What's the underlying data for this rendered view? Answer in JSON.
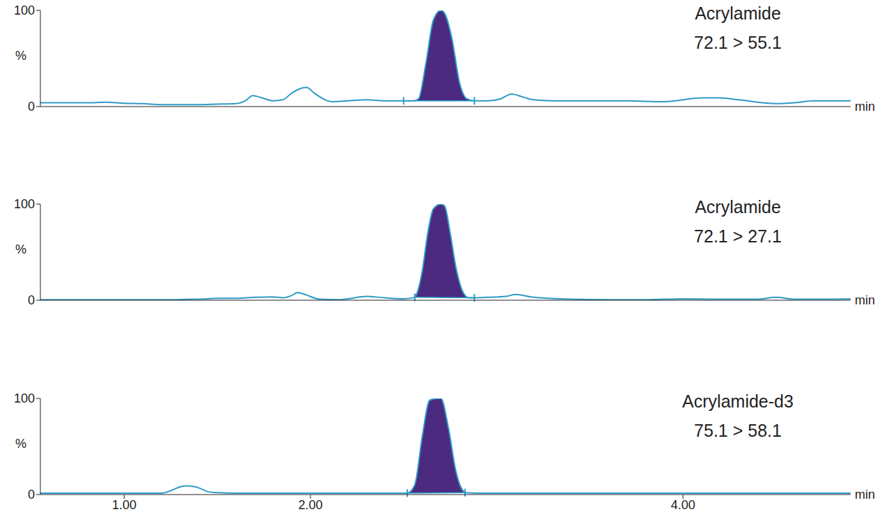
{
  "chart_data": [
    {
      "type": "line",
      "title": "Acrylamide",
      "subtitle": "72.1 > 55.1",
      "xlabel": "min",
      "ylabel": "%",
      "color": "#2e9bc6",
      "x": [
        0.55,
        0.7,
        0.8,
        0.9,
        1.0,
        1.1,
        1.2,
        1.3,
        1.4,
        1.5,
        1.6,
        1.65,
        1.69,
        1.74,
        1.8,
        1.85,
        1.9,
        1.95,
        1.98,
        2.02,
        2.08,
        2.12,
        2.2,
        2.3,
        2.4,
        2.5,
        2.55,
        2.58,
        2.62,
        2.66,
        2.7,
        2.72,
        2.76,
        2.8,
        2.84,
        2.88,
        2.95,
        3.02,
        3.08,
        3.14,
        3.2,
        3.3,
        3.5,
        3.7,
        3.9,
        4.1,
        4.2,
        4.3,
        4.5,
        4.6,
        4.7,
        4.9
      ],
      "values": [
        4,
        4,
        4,
        4.5,
        3.5,
        3,
        2,
        2,
        2,
        2.5,
        3,
        6,
        11.5,
        9,
        6,
        7,
        14,
        19,
        20,
        14,
        7,
        5,
        6,
        7,
        6,
        6,
        6,
        8,
        45,
        90,
        100,
        97,
        70,
        25,
        8,
        6,
        6,
        8,
        13,
        10,
        7,
        6,
        6,
        6,
        5,
        9,
        9,
        7,
        3,
        4,
        6,
        6
      ],
      "xlim": [
        0.55,
        4.9
      ],
      "ylim": [
        0,
        100
      ],
      "yticks": [
        0,
        100
      ],
      "xticks": [
        1,
        1.5,
        2,
        2.5,
        3,
        3.5,
        4,
        4.5
      ],
      "tick_labels": "y",
      "peak": {
        "start": 2.5,
        "end": 2.88,
        "color": "#4b2a7f"
      }
    },
    {
      "type": "line",
      "title": "Acrylamide",
      "subtitle": "72.1 > 27.1",
      "xlabel": "min",
      "ylabel": "%",
      "color": "#2e9bc6",
      "x": [
        0.55,
        0.8,
        1.0,
        1.2,
        1.4,
        1.5,
        1.6,
        1.7,
        1.8,
        1.85,
        1.9,
        1.93,
        1.97,
        2.05,
        2.15,
        2.2,
        2.3,
        2.4,
        2.5,
        2.56,
        2.6,
        2.63,
        2.66,
        2.7,
        2.72,
        2.75,
        2.78,
        2.82,
        2.85,
        2.88,
        2.95,
        3.05,
        3.1,
        3.2,
        3.4,
        3.6,
        3.8,
        4.0,
        4.2,
        4.4,
        4.5,
        4.6,
        4.7,
        4.9
      ],
      "values": [
        0.5,
        0.5,
        0.5,
        0.5,
        1,
        2,
        2,
        3,
        3.5,
        2.5,
        5,
        8,
        6,
        1,
        0.5,
        1.5,
        4,
        2.5,
        1.5,
        3,
        30,
        70,
        95,
        100,
        98,
        70,
        35,
        8,
        2.5,
        2.5,
        3,
        4,
        6,
        3,
        1,
        0.5,
        0.5,
        1.5,
        1,
        1,
        3,
        1,
        1,
        1.5
      ],
      "xlim": [
        0.55,
        4.9
      ],
      "ylim": [
        0,
        100
      ],
      "yticks": [
        0,
        100
      ],
      "xticks": [
        1,
        1.5,
        2,
        2.5,
        3,
        3.5,
        4,
        4.5
      ],
      "tick_labels": "y",
      "peak": {
        "start": 2.56,
        "end": 2.88,
        "color": "#4b2a7f"
      }
    },
    {
      "type": "line",
      "title": "Acrylamide-d3",
      "subtitle": "75.1 > 58.1",
      "xlabel": "min",
      "ylabel": "%",
      "color": "#2e9bc6",
      "x": [
        0.55,
        0.8,
        1.0,
        1.2,
        1.25,
        1.3,
        1.34,
        1.4,
        1.45,
        1.5,
        1.6,
        1.8,
        2.0,
        2.2,
        2.4,
        2.52,
        2.56,
        2.6,
        2.64,
        2.68,
        2.7,
        2.74,
        2.78,
        2.83,
        2.9,
        3.0,
        3.2,
        3.5,
        3.8,
        4.1,
        4.4,
        4.7,
        4.9
      ],
      "values": [
        1.5,
        1.5,
        1.5,
        1.5,
        4,
        8,
        9,
        7,
        3,
        2,
        1.5,
        1.5,
        1.5,
        1.5,
        1.5,
        1.5,
        10,
        60,
        98,
        100,
        100,
        70,
        25,
        2,
        1.5,
        1.5,
        1.5,
        1.5,
        1.5,
        1.5,
        1.5,
        1.5,
        1.5
      ],
      "xlim": [
        0.55,
        4.9
      ],
      "ylim": [
        0,
        100
      ],
      "yticks": [
        0,
        100
      ],
      "xticks": [
        {
          "value": 1,
          "label": "1.00"
        },
        {
          "value": 2,
          "label": "2.00"
        },
        {
          "value": 4,
          "label": "4.00"
        }
      ],
      "peak": {
        "start": 2.52,
        "end": 2.83,
        "color": "#4b2a7f"
      }
    }
  ]
}
